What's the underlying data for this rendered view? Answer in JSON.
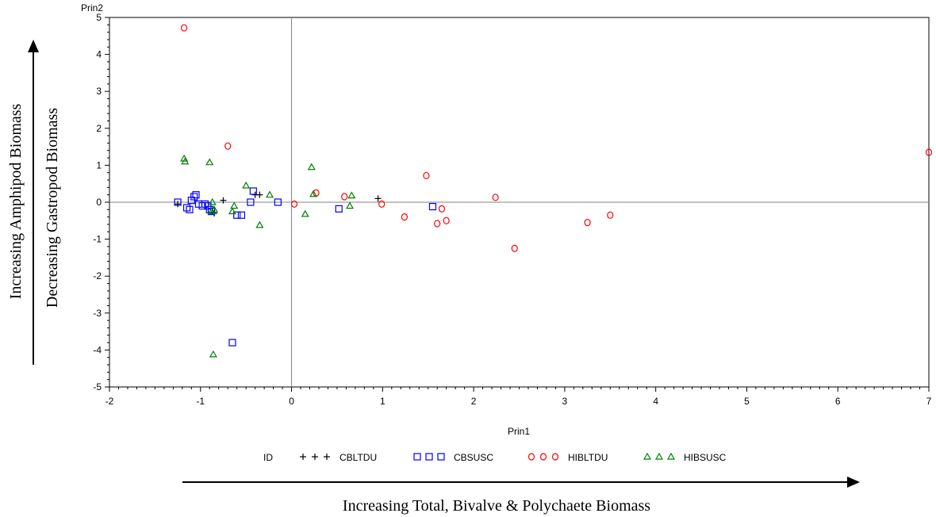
{
  "chart_data": {
    "type": "scatter",
    "title": "",
    "xlabel": "Prin1",
    "ylabel": "Prin2",
    "xlim": [
      -2,
      7
    ],
    "ylim": [
      -5,
      5
    ],
    "xticks": [
      "-2",
      "-1",
      "0",
      "1",
      "2",
      "3",
      "4",
      "5",
      "6",
      "7"
    ],
    "yticks": [
      "-5",
      "-4",
      "-3",
      "-2",
      "-1",
      "0",
      "1",
      "2",
      "3",
      "4",
      "5"
    ],
    "reference_lines": {
      "x": 0,
      "y": 0
    },
    "legend": {
      "title": "ID",
      "placement": "bottom"
    },
    "series": [
      {
        "name": "CBLTDU",
        "marker": "plus",
        "color": "#000000",
        "x": [
          -1.25,
          -0.75,
          -0.85,
          -0.35,
          -0.4,
          0.95
        ],
        "y": [
          -0.05,
          0.05,
          -0.3,
          0.2,
          0.2,
          0.1
        ]
      },
      {
        "name": "CBSUSC",
        "marker": "square",
        "color": "#0000ff",
        "x": [
          -1.25,
          -1.15,
          -1.12,
          -1.1,
          -1.07,
          -1.05,
          -1.02,
          -0.98,
          -0.95,
          -0.92,
          -0.9,
          -0.88,
          -0.6,
          -0.55,
          -0.45,
          -0.42,
          -0.15,
          0.52,
          1.55,
          -0.65
        ],
        "y": [
          0.0,
          -0.15,
          -0.2,
          0.05,
          0.15,
          0.2,
          -0.05,
          -0.1,
          -0.05,
          -0.1,
          -0.2,
          -0.25,
          -0.35,
          -0.35,
          0.0,
          0.3,
          0.0,
          -0.18,
          -0.12,
          -3.8
        ]
      },
      {
        "name": "HIBLTDU",
        "marker": "circle",
        "color": "#ff0000",
        "x": [
          -1.18,
          -0.7,
          0.03,
          0.27,
          0.58,
          0.99,
          1.24,
          1.48,
          1.6,
          1.65,
          1.7,
          2.24,
          2.45,
          3.25,
          3.5,
          7.0
        ],
        "y": [
          4.72,
          1.52,
          -0.05,
          0.25,
          0.15,
          -0.05,
          -0.4,
          0.72,
          -0.58,
          -0.18,
          -0.5,
          0.13,
          -1.25,
          -0.55,
          -0.35,
          1.35
        ]
      },
      {
        "name": "HIBSUSC",
        "marker": "triangle",
        "color": "#008000",
        "x": [
          -1.18,
          -1.17,
          -0.9,
          -0.88,
          -0.87,
          -0.85,
          -0.65,
          -0.63,
          -0.5,
          -0.35,
          -0.24,
          0.15,
          0.22,
          0.24,
          0.64,
          0.66,
          -0.86
        ],
        "y": [
          1.18,
          1.1,
          1.08,
          -0.25,
          0.0,
          -0.2,
          -0.25,
          -0.1,
          0.45,
          -0.62,
          0.2,
          -0.32,
          0.95,
          0.22,
          -0.1,
          0.18,
          -4.12
        ]
      }
    ]
  },
  "annotations": {
    "y_arrow_label_1": "Increasing Amphipod Biomass",
    "y_arrow_label_2": "Decreasing Gastropod Biomass",
    "x_arrow_label": "Increasing Total, Bivalve & Polychaete Biomass"
  }
}
